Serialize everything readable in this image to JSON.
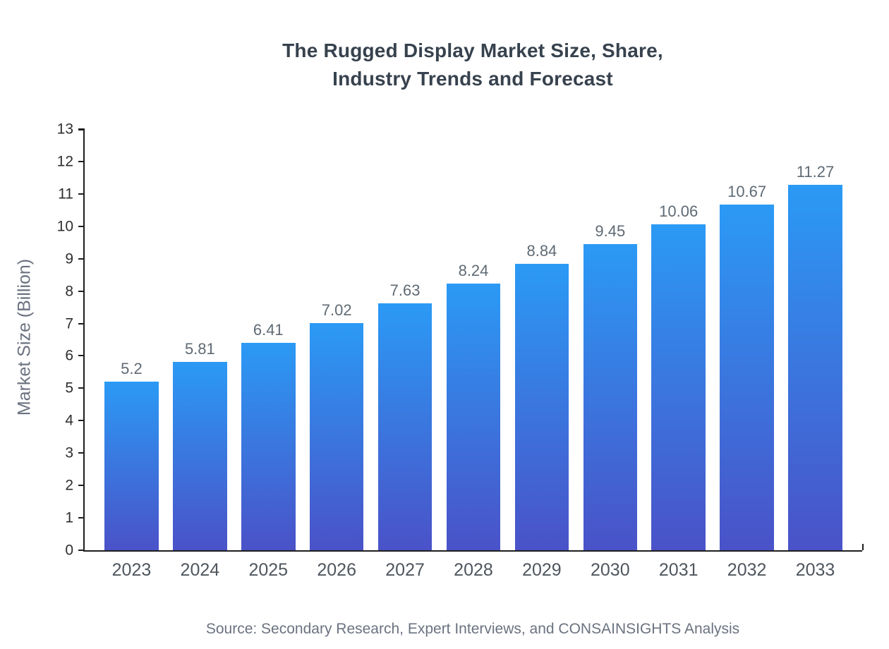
{
  "page": {
    "title_line1": "The Rugged Display Market Size, Share,",
    "title_line2": "Industry Trends and Forecast",
    "source": "Source: Secondary Research, Expert Interviews, and CONSAINSIGHTS Analysis"
  },
  "chart_data": {
    "type": "bar",
    "title": "The Rugged Display Market Size, Share, Industry Trends and Forecast",
    "categories": [
      "2023",
      "2024",
      "2025",
      "2026",
      "2027",
      "2028",
      "2029",
      "2030",
      "2031",
      "2032",
      "2033"
    ],
    "values": [
      5.2,
      5.81,
      6.41,
      7.02,
      7.63,
      8.24,
      8.84,
      9.45,
      10.06,
      10.67,
      11.27
    ],
    "value_labels": [
      "5.2",
      "5.81",
      "6.41",
      "7.02",
      "7.63",
      "8.24",
      "8.84",
      "9.45",
      "10.06",
      "10.67",
      "11.27"
    ],
    "xlabel": "",
    "ylabel": "Market Size (Billion)",
    "ylim": [
      0,
      13
    ],
    "ytick_step": 1,
    "grid": false,
    "legend": "none",
    "bar_gradient_top": "#2b9af5",
    "bar_gradient_bottom": "#4a52c8",
    "axis_color": "#1f1f1f",
    "value_label_color": "#5f6a74",
    "tick_label_color": "#2e2e2e",
    "x_label_color": "#4f565e"
  }
}
